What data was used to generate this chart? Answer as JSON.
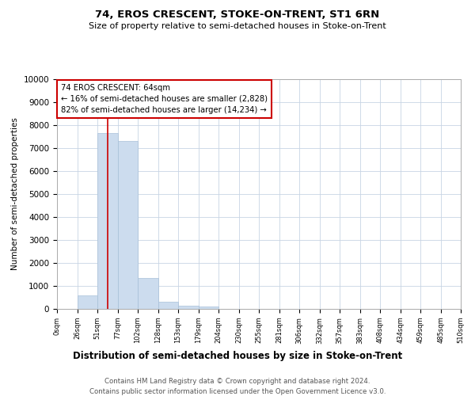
{
  "title": "74, EROS CRESCENT, STOKE-ON-TRENT, ST1 6RN",
  "subtitle": "Size of property relative to semi-detached houses in Stoke-on-Trent",
  "xlabel": "Distribution of semi-detached houses by size in Stoke-on-Trent",
  "ylabel": "Number of semi-detached properties",
  "footer_line1": "Contains HM Land Registry data © Crown copyright and database right 2024.",
  "footer_line2": "Contains public sector information licensed under the Open Government Licence v3.0.",
  "annotation_title": "74 EROS CRESCENT: 64sqm",
  "annotation_line1": "← 16% of semi-detached houses are smaller (2,828)",
  "annotation_line2": "82% of semi-detached houses are larger (14,234) →",
  "property_size": 64,
  "bar_color": "#ccdcee",
  "bar_edge_color": "#a8c0d8",
  "marker_color": "#cc0000",
  "bins": [
    0,
    26,
    51,
    77,
    102,
    128,
    153,
    179,
    204,
    230,
    255,
    281,
    306,
    332,
    357,
    383,
    408,
    434,
    459,
    485,
    510
  ],
  "counts": [
    0,
    590,
    7650,
    7300,
    1350,
    310,
    140,
    90,
    0,
    0,
    0,
    0,
    0,
    0,
    0,
    0,
    0,
    0,
    0,
    0
  ],
  "ylim": [
    0,
    10000
  ],
  "yticks": [
    0,
    1000,
    2000,
    3000,
    4000,
    5000,
    6000,
    7000,
    8000,
    9000,
    10000
  ],
  "annotation_box_color": "#ffffff",
  "annotation_box_edge_color": "#cc0000",
  "background_color": "#ffffff",
  "grid_color": "#c8d4e4"
}
